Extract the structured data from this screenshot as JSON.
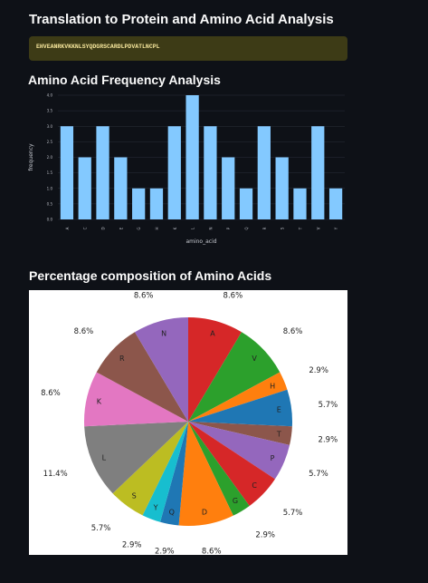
{
  "headings": {
    "translation": "Translation to Protein and Amino Acid Analysis",
    "frequency": "Amino Acid Frequency Analysis",
    "percentage": "Percentage composition of Amino Acids"
  },
  "protein_sequence": "EHVEANRKVKKNLSYQDGRSCARDLPDVATLNCPL",
  "colors": {
    "bar": "#83c9ff",
    "background": "#0e1117",
    "sequence_bg": "#3d3b16",
    "sequence_text": "#f5e59b"
  },
  "chart_data": [
    {
      "type": "bar",
      "title": "",
      "xlabel": "amino_acid",
      "ylabel": "frequency",
      "categories": [
        "A",
        "C",
        "D",
        "E",
        "G",
        "H",
        "K",
        "L",
        "N",
        "P",
        "Q",
        "R",
        "S",
        "T",
        "V",
        "Y"
      ],
      "values": [
        3,
        2,
        3,
        2,
        1,
        1,
        3,
        4,
        3,
        2,
        1,
        3,
        2,
        1,
        3,
        1
      ],
      "ylim": [
        0,
        4
      ],
      "yticks": [
        "0.0",
        "0.5",
        "1.0",
        "1.5",
        "2.0",
        "2.5",
        "3.0",
        "3.5",
        "4.0"
      ],
      "grid": true
    },
    {
      "type": "pie",
      "title": "",
      "labels": [
        "A",
        "V",
        "H",
        "E",
        "T",
        "P",
        "C",
        "G",
        "D",
        "Q",
        "Y",
        "S",
        "L",
        "K",
        "R",
        "N"
      ],
      "values": [
        8.6,
        8.6,
        2.9,
        5.7,
        2.9,
        5.7,
        5.7,
        2.9,
        8.6,
        2.9,
        2.9,
        5.7,
        11.4,
        8.6,
        8.6,
        8.6
      ],
      "pct_labels": [
        "8.6%",
        "8.6%",
        "2.9%",
        "5.7%",
        "2.9%",
        "5.7%",
        "5.7%",
        "2.9%",
        "8.6%",
        "2.9%",
        "2.9%",
        "5.7%",
        "11.4%",
        "8.6%",
        "8.6%",
        "8.6%"
      ],
      "colors": [
        "#d62728",
        "#2ca02c",
        "#ff7f0e",
        "#1f77b4",
        "#8c564b",
        "#9467bd",
        "#d62728",
        "#2ca02c",
        "#ff7f0e",
        "#1f77b4",
        "#17becf",
        "#bcbd22",
        "#7f7f7f",
        "#e377c2",
        "#8c564b",
        "#9467bd"
      ]
    }
  ]
}
